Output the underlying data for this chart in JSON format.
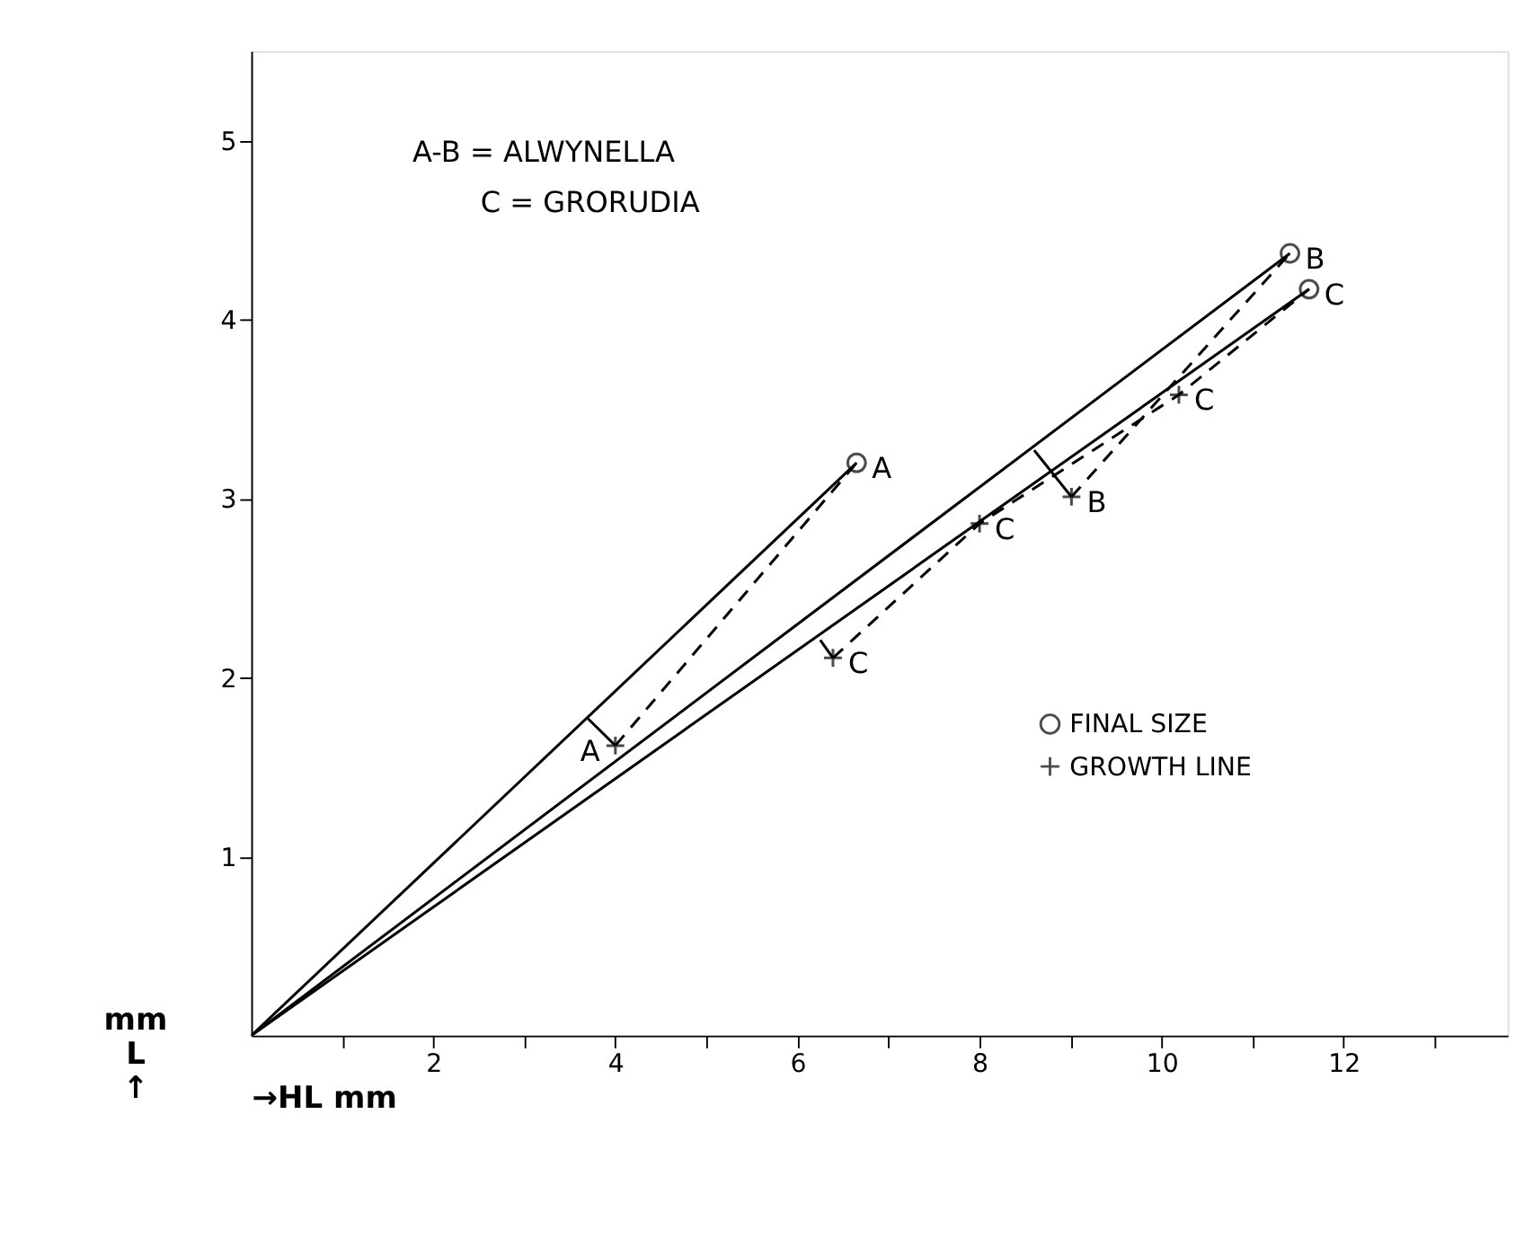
{
  "chart_data": {
    "type": "scatter",
    "xlabel": "→HL mm",
    "ylabel": "mm L ↑",
    "xlim": [
      0,
      13.8
    ],
    "ylim": [
      0,
      5.5
    ],
    "xticks": [
      {
        "value": 1,
        "label": null
      },
      2,
      {
        "value": 3,
        "label": null
      },
      4,
      {
        "value": 5,
        "label": null
      },
      6,
      {
        "value": 7,
        "label": null
      },
      8,
      {
        "value": 9,
        "label": null
      },
      10,
      {
        "value": 11,
        "label": null
      },
      12,
      {
        "value": 13,
        "label": null
      }
    ],
    "yticks": [
      1,
      2,
      3,
      4,
      5
    ],
    "grid": false,
    "legend": "bottom right",
    "series": [
      {
        "name": "FINAL SIZE",
        "marker": "circle",
        "color": "#000000",
        "x": [
          6.65,
          11.41,
          11.62
        ],
        "values": [
          3.2,
          4.37,
          4.17
        ]
      },
      {
        "name": "GROWTH LINE",
        "marker": "cross",
        "color": "#000000",
        "x": [
          4.0,
          6.39,
          8.0,
          9.01,
          10.19
        ],
        "values": [
          1.62,
          2.11,
          2.86,
          3.01,
          3.58
        ]
      },
      {
        "type": "line",
        "line_style": "solid",
        "color": "#000000",
        "x": [
          0,
          6.65
        ],
        "values": [
          0,
          3.2
        ]
      },
      {
        "type": "line",
        "line_style": "solid",
        "color": "#000000",
        "x": [
          0,
          11.41
        ],
        "values": [
          0,
          4.37
        ]
      },
      {
        "type": "line",
        "line_style": "solid",
        "color": "#000000",
        "x": [
          0,
          11.62
        ],
        "values": [
          0,
          4.17
        ]
      },
      {
        "type": "line",
        "line_style": "dashed",
        "color": "#000000",
        "x": [
          4.0,
          6.65
        ],
        "values": [
          1.62,
          3.2
        ]
      },
      {
        "type": "line",
        "line_style": "dashed",
        "color": "#000000",
        "x": [
          9.01,
          11.41
        ],
        "values": [
          3.01,
          4.37
        ]
      },
      {
        "type": "line",
        "line_style": "dashed",
        "color": "#000000",
        "x": [
          6.39,
          8.0,
          10.19,
          11.62
        ],
        "values": [
          2.11,
          2.86,
          3.58,
          4.17
        ]
      },
      {
        "type": "line",
        "line_style": "solid",
        "color": "#000000",
        "x": [
          4.0,
          3.7
        ],
        "values": [
          1.62,
          1.77
        ]
      },
      {
        "type": "line",
        "line_style": "solid",
        "color": "#000000",
        "x": [
          9.01,
          8.6
        ],
        "values": [
          3.01,
          3.27
        ]
      },
      {
        "type": "line",
        "line_style": "solid",
        "color": "#000000",
        "x": [
          6.39,
          6.25
        ],
        "values": [
          2.11,
          2.21
        ]
      }
    ],
    "annotations": [
      "A-B = ALWYNELLA",
      "C = GRORUDIA",
      {
        "text": "A",
        "x": 6.65,
        "y": 3.2
      },
      {
        "text": "B",
        "x": 11.41,
        "y": 4.37
      },
      {
        "text": "C",
        "x": 11.62,
        "y": 4.17
      },
      {
        "text": "A",
        "x": 4.0,
        "y": 1.62
      },
      {
        "text": "C",
        "x": 6.39,
        "y": 2.11
      },
      {
        "text": "C",
        "x": 8.0,
        "y": 2.86
      },
      {
        "text": "B",
        "x": 9.01,
        "y": 3.01
      },
      {
        "text": "C",
        "x": 10.19,
        "y": 3.58
      }
    ]
  }
}
